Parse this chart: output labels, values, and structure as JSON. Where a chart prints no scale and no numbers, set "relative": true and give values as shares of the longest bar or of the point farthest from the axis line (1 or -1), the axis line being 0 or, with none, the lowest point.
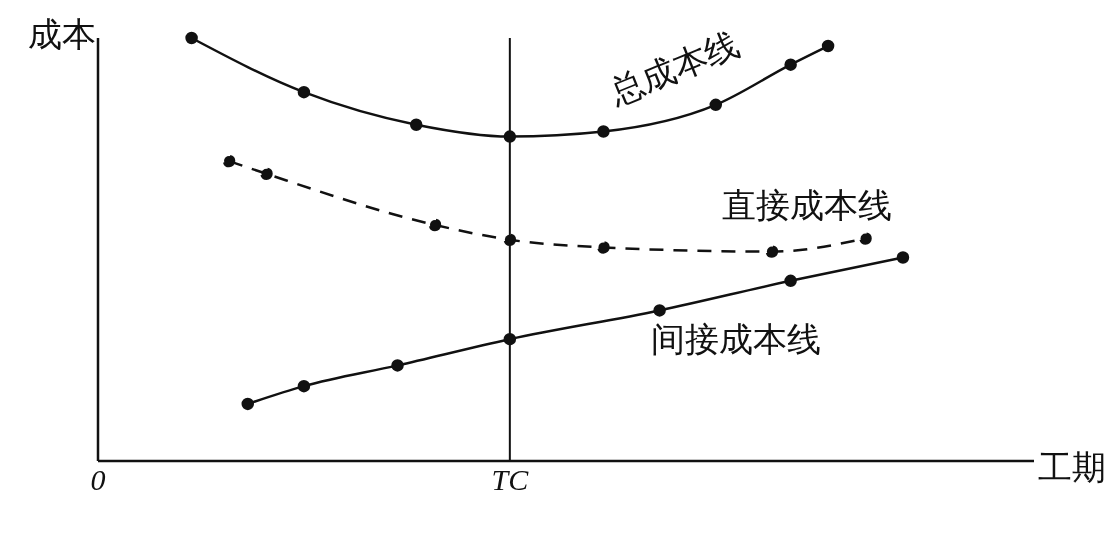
{
  "chart_data": {
    "type": "line",
    "xlabel": "工期",
    "ylabel": "成本",
    "relative": true,
    "categories": [
      "0",
      null,
      null,
      null,
      null,
      null,
      null,
      null,
      null,
      null,
      null,
      null,
      null,
      null,
      null,
      null,
      null,
      null,
      null,
      null,
      null,
      null,
      "TC",
      null,
      null,
      null,
      null,
      null,
      null,
      null,
      null,
      null,
      null,
      null,
      null,
      null,
      null,
      null,
      null,
      null,
      null,
      null,
      null,
      null,
      null,
      null,
      null,
      null,
      null,
      null,
      null
    ],
    "marker": "circle",
    "grid": false,
    "legend": false,
    "series": [
      {
        "name": "总成本线",
        "color": "#111111",
        "line_style": "solid",
        "values": [
          null,
          null,
          null,
          null,
          null,
          1,
          null,
          null,
          null,
          null,
          null,
          0.872,
          null,
          null,
          null,
          null,
          null,
          0.795,
          null,
          null,
          null,
          null,
          0.767,
          null,
          null,
          null,
          null,
          0.779,
          null,
          null,
          null,
          null,
          null,
          0.842,
          null,
          null,
          null,
          0.937,
          null,
          0.981,
          null,
          null,
          null,
          null,
          null,
          null,
          null,
          null,
          null,
          null,
          null
        ]
      },
      {
        "name": "直接成本线",
        "color": "#111111",
        "line_style": "dashed",
        "values": [
          null,
          null,
          null,
          null,
          null,
          null,
          null,
          0.709,
          null,
          0.679,
          null,
          null,
          null,
          null,
          null,
          null,
          null,
          null,
          0.558,
          null,
          null,
          null,
          0.523,
          null,
          null,
          null,
          null,
          0.505,
          null,
          null,
          null,
          null,
          null,
          null,
          null,
          null,
          0.495,
          null,
          null,
          null,
          null,
          0.526,
          null,
          null,
          null,
          null,
          null,
          null,
          null,
          null,
          null
        ]
      },
      {
        "name": "间接成本线",
        "color": "#111111",
        "line_style": "solid",
        "values": [
          null,
          null,
          null,
          null,
          null,
          null,
          null,
          null,
          0.135,
          null,
          null,
          0.177,
          null,
          null,
          null,
          null,
          0.226,
          null,
          null,
          null,
          null,
          null,
          0.288,
          null,
          null,
          null,
          null,
          null,
          null,
          null,
          0.356,
          null,
          null,
          null,
          null,
          null,
          null,
          0.426,
          null,
          null,
          null,
          null,
          null,
          0.481,
          null,
          null,
          null,
          null,
          null,
          null,
          null
        ]
      }
    ],
    "ref_lines": [
      {
        "axis": "x",
        "value": "TC",
        "color": "#111111"
      }
    ]
  }
}
